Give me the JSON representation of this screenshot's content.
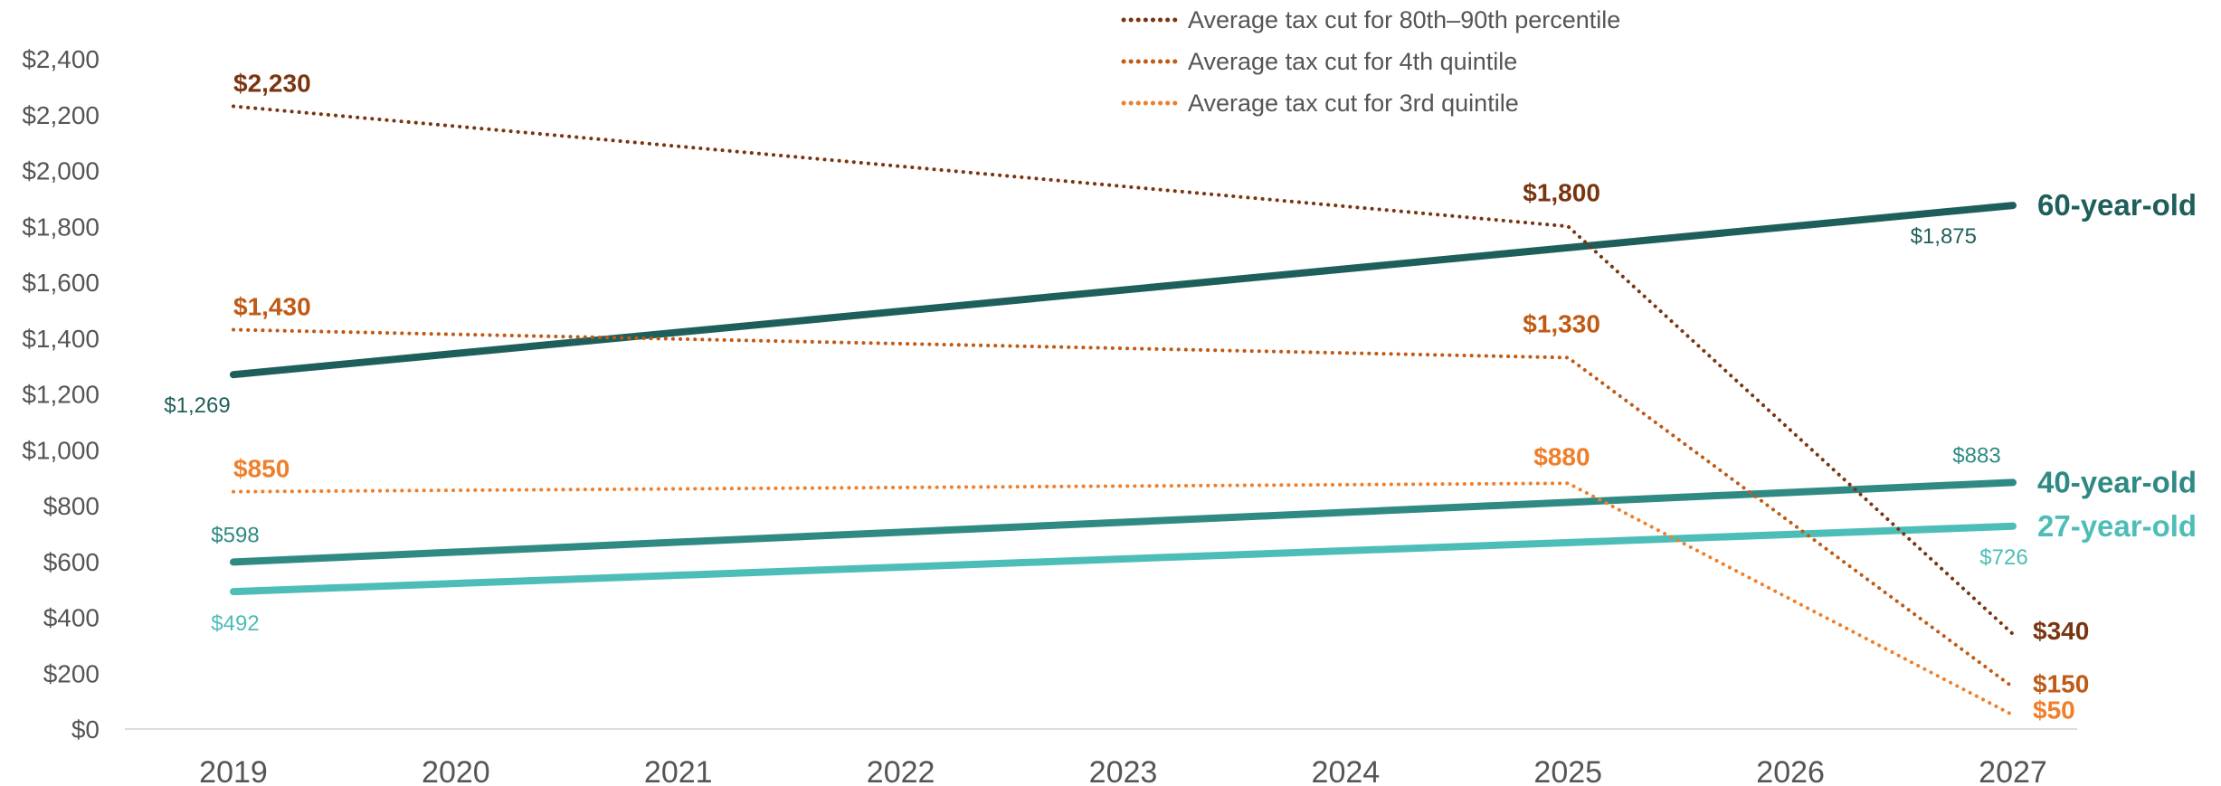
{
  "chart_data": {
    "type": "line",
    "title": "",
    "xlabel": "",
    "ylabel": "",
    "x": [
      2019,
      2020,
      2021,
      2022,
      2023,
      2024,
      2025,
      2026,
      2027
    ],
    "ylim": [
      0,
      2400
    ],
    "y_ticks": [
      "$0",
      "$200",
      "$400",
      "$600",
      "$800",
      "$1,000",
      "$1,200",
      "$1,400",
      "$1,600",
      "$1,800",
      "$2,000",
      "$2,200",
      "$2,400"
    ],
    "x_ticks": [
      "2019",
      "2020",
      "2021",
      "2022",
      "2023",
      "2024",
      "2025",
      "2026",
      "2027"
    ],
    "grid": false,
    "legend_position": "top",
    "legend": [
      "Average tax cut for 80th–90th percentile",
      "Average tax cut for 4th quintile",
      "Average tax cut for 3rd quintile"
    ],
    "series": [
      {
        "name": "Average tax cut for 80th–90th percentile",
        "style": "dotted",
        "color": "#7a3510",
        "points": [
          [
            2019,
            2230
          ],
          [
            2025,
            1800
          ],
          [
            2027,
            340
          ]
        ],
        "labels": [
          "$2,230",
          "$1,800",
          "$340"
        ]
      },
      {
        "name": "Average tax cut for 4th quintile",
        "style": "dotted",
        "color": "#c05a14",
        "points": [
          [
            2019,
            1430
          ],
          [
            2025,
            1330
          ],
          [
            2027,
            150
          ]
        ],
        "labels": [
          "$1,430",
          "$1,330",
          "$150"
        ]
      },
      {
        "name": "Average tax cut for 3rd quintile",
        "style": "dotted",
        "color": "#ef7f2a",
        "points": [
          [
            2019,
            850
          ],
          [
            2025,
            880
          ],
          [
            2027,
            50
          ]
        ],
        "labels": [
          "$850",
          "$880",
          "$50"
        ]
      },
      {
        "name": "60-year-old",
        "style": "solid",
        "color": "#1f5f5b",
        "points": [
          [
            2019,
            1269
          ],
          [
            2027,
            1875
          ]
        ],
        "labels": [
          "$1,269",
          "$1,875"
        ]
      },
      {
        "name": "40-year-old",
        "style": "solid",
        "color": "#2f8a84",
        "points": [
          [
            2019,
            598
          ],
          [
            2027,
            883
          ]
        ],
        "labels": [
          "$598",
          "$883"
        ]
      },
      {
        "name": "27-year-old",
        "style": "solid",
        "color": "#4dbdb7",
        "points": [
          [
            2019,
            492
          ],
          [
            2027,
            726
          ]
        ],
        "labels": [
          "$492",
          "$726"
        ]
      }
    ]
  }
}
